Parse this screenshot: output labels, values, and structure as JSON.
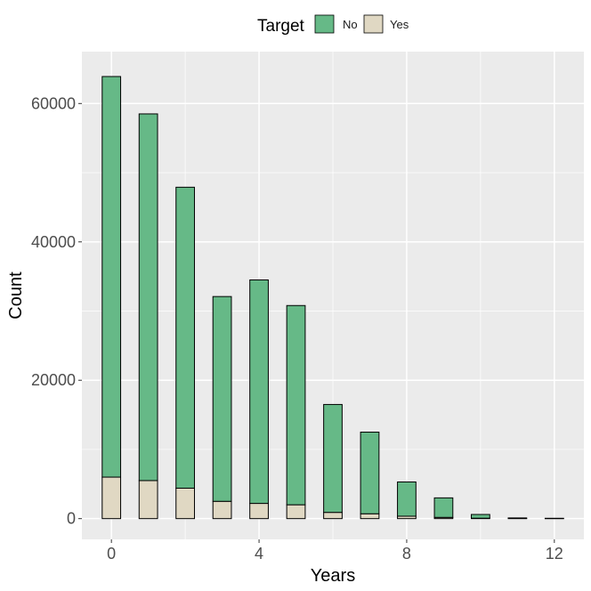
{
  "chart_data": {
    "type": "bar",
    "stacked": true,
    "xlabel": "Years",
    "ylabel": "Count",
    "x": [
      0,
      1,
      2,
      3,
      4,
      5,
      6,
      7,
      8,
      9,
      10,
      11,
      12
    ],
    "series": [
      {
        "name": "Yes",
        "color": "#e0d8c3",
        "values": [
          6000,
          5500,
          4400,
          2500,
          2200,
          2000,
          900,
          700,
          350,
          180,
          60,
          20,
          10
        ]
      },
      {
        "name": "No",
        "color": "#66b987",
        "values": [
          57900,
          53000,
          43500,
          29600,
          32300,
          28800,
          15600,
          11800,
          4950,
          2820,
          540,
          80,
          40
        ]
      }
    ],
    "xlim": [
      -0.8,
      12.8
    ],
    "ylim": [
      -3000,
      67500
    ],
    "x_ticks": [
      0,
      4,
      8,
      12
    ],
    "y_ticks": [
      0,
      20000,
      40000,
      60000
    ],
    "grid": true,
    "legend": {
      "title": "Target",
      "position": "top",
      "entries": [
        "No",
        "Yes"
      ]
    }
  }
}
